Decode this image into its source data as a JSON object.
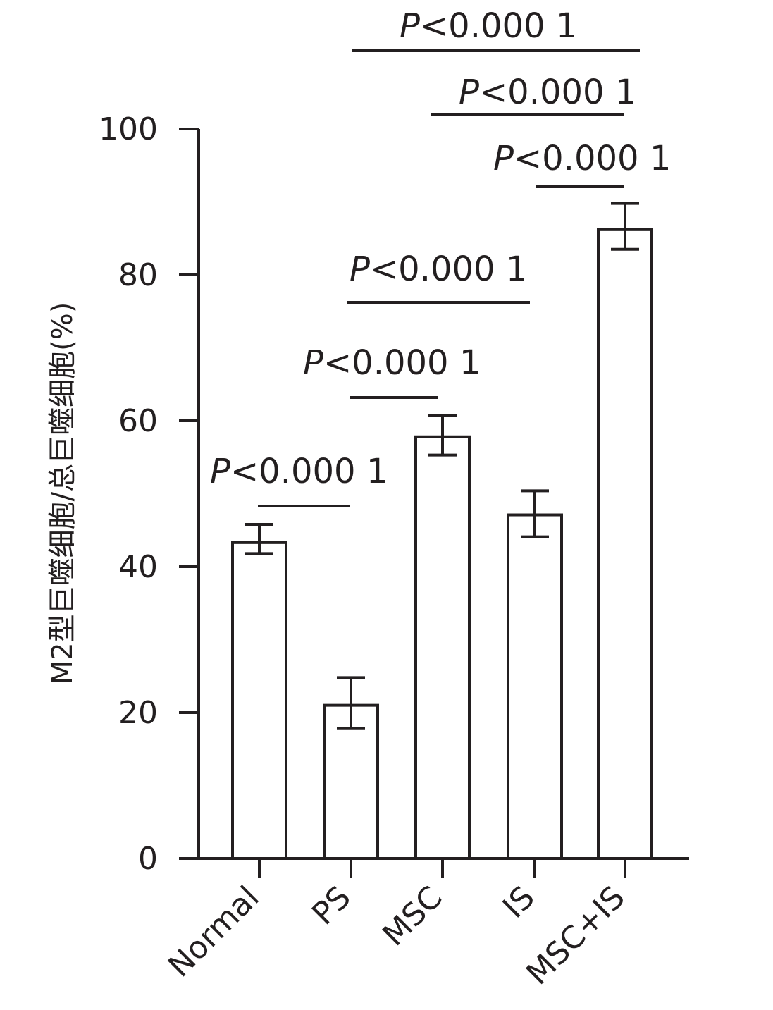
{
  "chart_data": {
    "type": "bar",
    "ylabel": "M2型巨噬细胞/总巨噬细胞(%)",
    "categories": [
      "Normal",
      "PS",
      "MSC",
      "IS",
      "MSC+IS"
    ],
    "values": [
      43.3,
      21.0,
      57.8,
      47.1,
      86.2
    ],
    "errors": [
      [
        41.8,
        45.8
      ],
      [
        17.8,
        24.8
      ],
      [
        55.3,
        60.7
      ],
      [
        44.1,
        50.4
      ],
      [
        83.5,
        89.8
      ]
    ],
    "ylim": [
      0,
      100
    ],
    "yticks": [
      "0",
      "20",
      "40",
      "60",
      "80",
      "100"
    ],
    "significance": [
      {
        "from": 0,
        "to": 1,
        "p_prefix": "P",
        "p_text": "<0.000 1"
      },
      {
        "from": 1,
        "to": 2,
        "p_prefix": "P",
        "p_text": "<0.000 1"
      },
      {
        "from": 1,
        "to": 3,
        "p_prefix": "P",
        "p_text": "<0.000 1"
      },
      {
        "from": 3,
        "to": 4,
        "p_prefix": "P",
        "p_text": "<0.000 1"
      },
      {
        "from": 2,
        "to": 4,
        "p_prefix": "P",
        "p_text": "<0.000 1"
      },
      {
        "from": 1,
        "to": 4,
        "p_prefix": "P",
        "p_text": "<0.000 1"
      }
    ],
    "colors": {
      "ink": "#231f20",
      "bar_fill": "#ffffff"
    }
  }
}
